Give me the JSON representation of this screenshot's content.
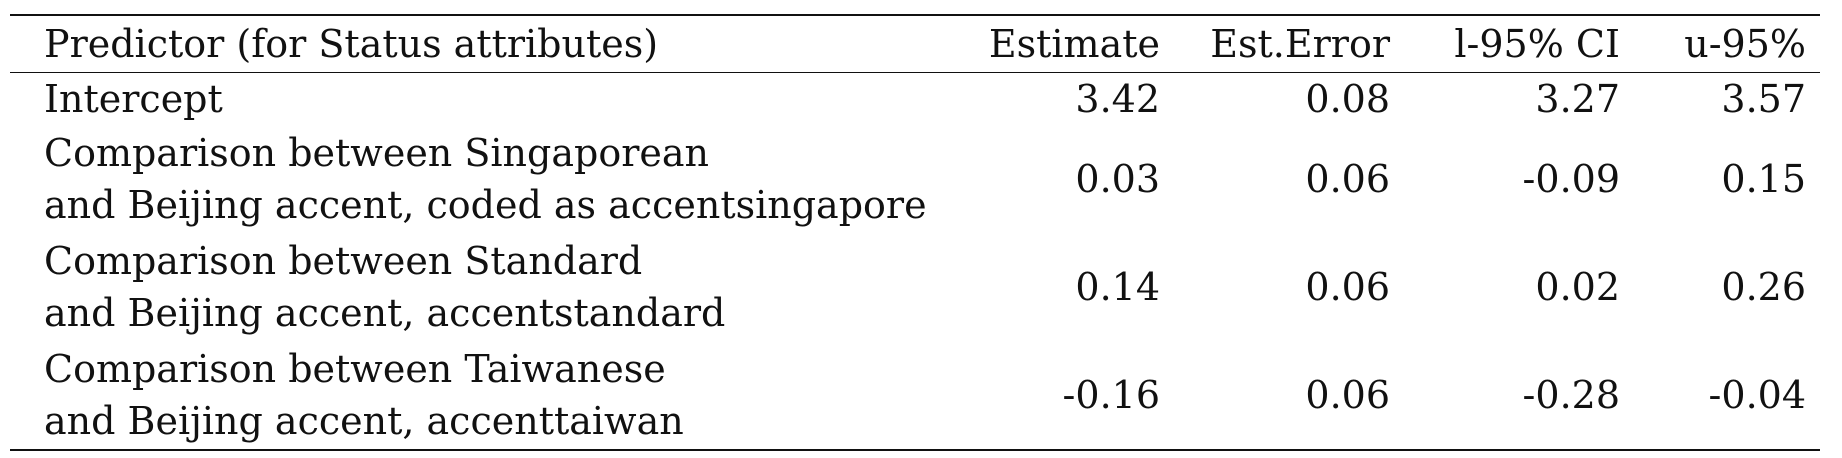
{
  "table": {
    "headers": {
      "predictor": "Predictor (for Status attributes)",
      "estimate": "Estimate",
      "est_error": "Est.Error",
      "l95": "l-95% CI",
      "u95": "u-95%"
    },
    "rows": [
      {
        "predictor_line1": "Intercept",
        "predictor_line2": "",
        "estimate": "3.42",
        "est_error": "0.08",
        "l95": "3.27",
        "u95": "3.57"
      },
      {
        "predictor_line1": "Comparison between Singaporean",
        "predictor_line2": "and Beijing accent, coded as accentsingapore",
        "estimate": "0.03",
        "est_error": "0.06",
        "l95": "-0.09",
        "u95": "0.15"
      },
      {
        "predictor_line1": "Comparison between Standard",
        "predictor_line2": "and Beijing accent, accentstandard",
        "estimate": "0.14",
        "est_error": "0.06",
        "l95": "0.02",
        "u95": "0.26"
      },
      {
        "predictor_line1": "Comparison between Taiwanese",
        "predictor_line2": "and Beijing accent, accenttaiwan",
        "estimate": "-0.16",
        "est_error": "0.06",
        "l95": "-0.28",
        "u95": "-0.04"
      }
    ]
  }
}
